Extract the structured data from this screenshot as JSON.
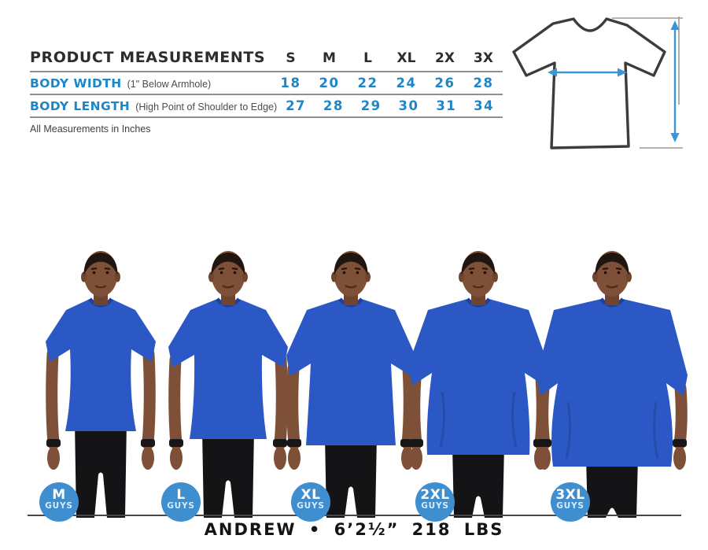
{
  "table": {
    "title": "PRODUCT MEASUREMENTS",
    "sizes": [
      "S",
      "M",
      "L",
      "XL",
      "2X",
      "3X"
    ],
    "rows": [
      {
        "label": "BODY WIDTH",
        "note": "(1\" Below Armhole)",
        "values": [
          "18",
          "20",
          "22",
          "24",
          "26",
          "28"
        ]
      },
      {
        "label": "BODY LENGTH",
        "note": "(High Point of Shoulder to Edge)",
        "values": [
          "27",
          "28",
          "29",
          "30",
          "31",
          "34"
        ]
      }
    ],
    "footnote": "All Measurements in Inches",
    "accent_color": "#1d86c9",
    "header_color": "#2d2d2d"
  },
  "chart_data": {
    "type": "table",
    "title": "PRODUCT MEASUREMENTS",
    "columns": [
      "Measurement",
      "S",
      "M",
      "L",
      "XL",
      "2X",
      "3X"
    ],
    "rows": [
      [
        "BODY WIDTH (1\" Below Armhole)",
        18,
        20,
        22,
        24,
        26,
        28
      ],
      [
        "BODY LENGTH (High Point of Shoulder to Edge)",
        27,
        28,
        29,
        30,
        31,
        34
      ]
    ],
    "units": "inches"
  },
  "diagram": {
    "description": "t-shirt outline with body width arrow across chest and body length arrow at right",
    "outline_color": "#3c3c3c",
    "arrow_color": "#3b96d9",
    "guide_color": "#9b9b9b"
  },
  "lineup": {
    "badges": [
      {
        "size": "M",
        "sublabel": "GUYS"
      },
      {
        "size": "L",
        "sublabel": "GUYS"
      },
      {
        "size": "XL",
        "sublabel": "GUYS"
      },
      {
        "size": "2XL",
        "sublabel": "GUYS"
      },
      {
        "size": "3XL",
        "sublabel": "GUYS"
      }
    ],
    "badge_color": "#3e8ed0",
    "shirt_color": "#2b58c4",
    "caption": "ANDREW • 6’2½” 218 LBS"
  }
}
